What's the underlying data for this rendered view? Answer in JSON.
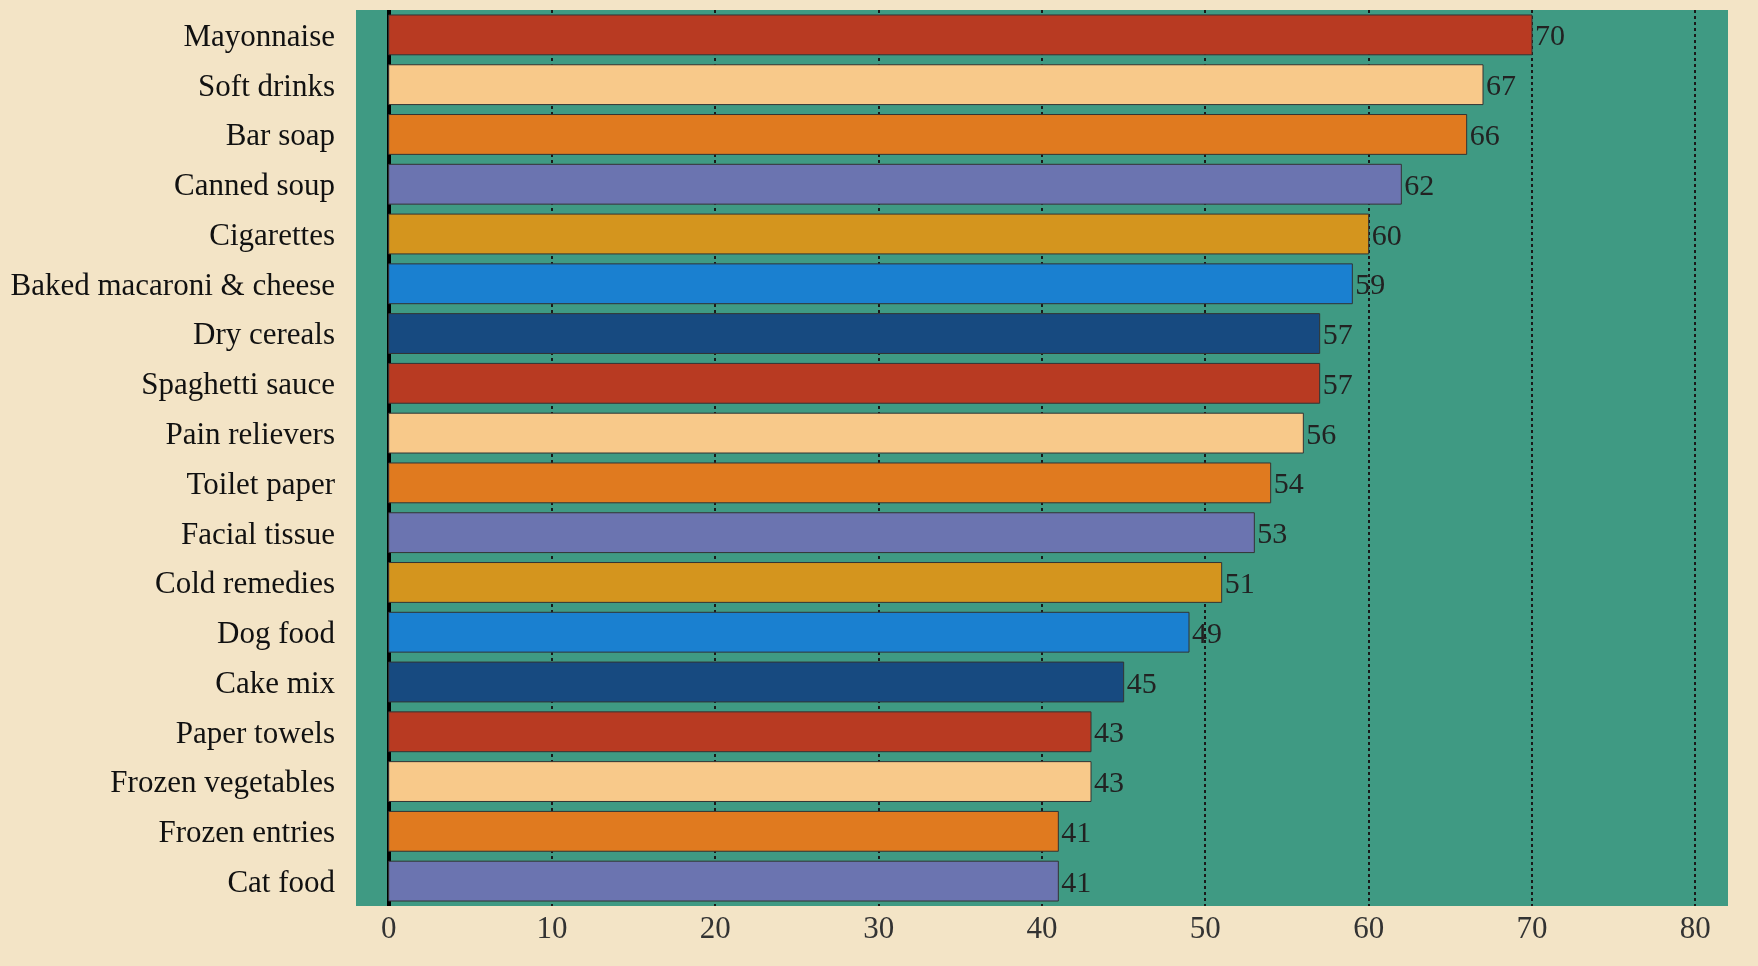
{
  "chart_data": {
    "type": "bar",
    "orientation": "horizontal",
    "categories": [
      "Mayonnaise",
      "Soft drinks",
      "Bar soap",
      "Canned soup",
      "Cigarettes",
      "Baked macaroni & cheese",
      "Dry cereals",
      "Spaghetti sauce",
      "Pain relievers",
      "Toilet paper",
      "Facial tissue",
      "Cold remedies",
      "Dog food",
      "Cake mix",
      "Paper towels",
      "Frozen vegetables",
      "Frozen entries",
      "Cat food"
    ],
    "values": [
      70,
      67,
      66,
      62,
      60,
      59,
      57,
      57,
      56,
      54,
      53,
      51,
      49,
      45,
      43,
      43,
      41,
      41
    ],
    "colors": [
      "#b83a22",
      "#f8c98a",
      "#e07a1f",
      "#6b74b0",
      "#d4951e",
      "#1a80d0",
      "#174a80",
      "#b83a22",
      "#f8c98a",
      "#e07a1f",
      "#6b74b0",
      "#d4951e",
      "#1a80d0",
      "#174a80",
      "#b83a22",
      "#f8c98a",
      "#e07a1f",
      "#6b74b0"
    ],
    "xlim": [
      -2,
      82
    ],
    "xticks": [
      0,
      10,
      20,
      30,
      40,
      50,
      60,
      70,
      80
    ],
    "grid": "x",
    "data_labels": true
  }
}
